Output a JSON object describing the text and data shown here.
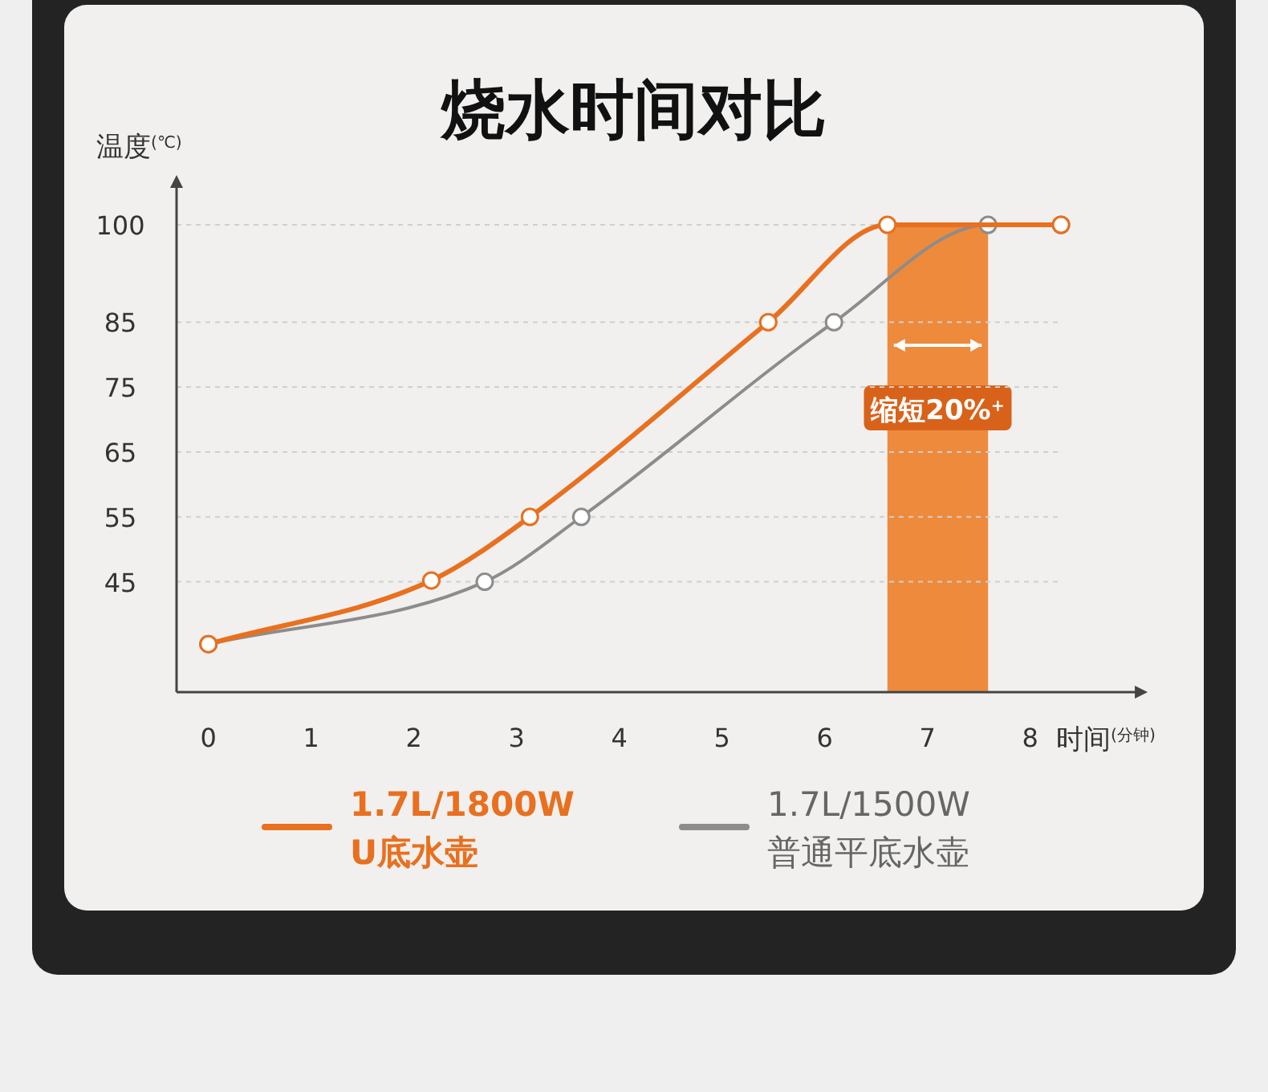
{
  "chart_data": {
    "type": "line",
    "title": "烧水时间对比",
    "xlabel": "时间$^{(分钟)}$",
    "ylabel": "温度$^{(℃)}$",
    "xlim": [
      -0.31,
      9.05
    ],
    "grid": "y",
    "xticks": [
      0,
      1,
      2,
      3,
      4,
      5,
      6,
      7,
      8
    ],
    "ylim": [
      28,
      100
    ],
    "yticks": [
      45,
      55,
      65,
      75,
      85,
      100
    ],
    "marker": "circle",
    "legend": "bottom",
    "series": [
      {
        "name": "1.7L/1800W U底水壶",
        "color": "#e8701f",
        "x": [
          0,
          2.17,
          3.13,
          5.45,
          6.61,
          8.3
        ],
        "values": [
          35.4,
          45.2,
          55,
          85,
          100,
          100
        ]
      },
      {
        "name": "1.7L/1500W 普通平底水壶",
        "color": "#8c8c8c",
        "x": [
          0,
          2.69,
          3.63,
          6.09,
          7.59,
          8.3
        ],
        "values": [
          35.4,
          45,
          55,
          85,
          100,
          100
        ]
      }
    ],
    "bands": [
      {
        "axis": "x",
        "from": 6.61,
        "to": 7.59,
        "label": "缩短20%$^{+}$",
        "color": "#ee8a3c"
      }
    ]
  }
}
